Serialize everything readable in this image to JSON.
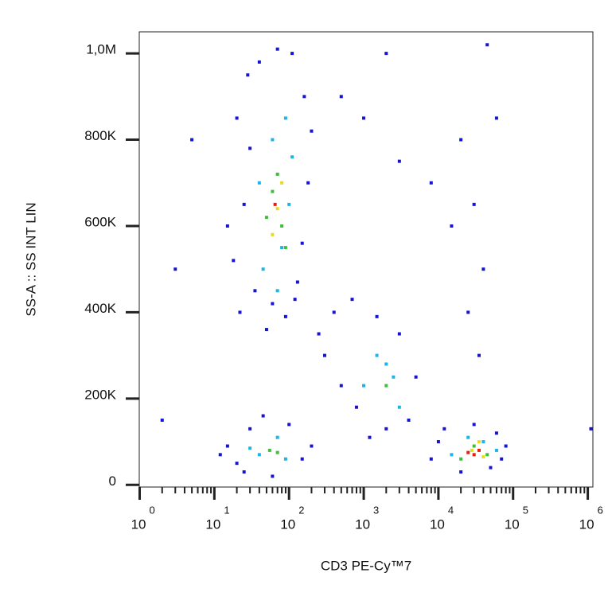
{
  "chart_data": {
    "type": "scatter",
    "x_label": "CD3 PE-Cy™7",
    "y_label": "SS-A :: SS INT LIN",
    "xscale": "log",
    "xlim": [
      1,
      1170000
    ],
    "ylim": [
      -5000,
      1050000
    ],
    "xticks": [
      {
        "value": 1,
        "label": "10",
        "exponent": "0"
      },
      {
        "value": 10,
        "label": "10",
        "exponent": "1"
      },
      {
        "value": 100,
        "label": "10",
        "exponent": "2"
      },
      {
        "value": 1000,
        "label": "10",
        "exponent": "3"
      },
      {
        "value": 10000,
        "label": "10",
        "exponent": "4"
      },
      {
        "value": 100000,
        "label": "10",
        "exponent": "5"
      },
      {
        "value": 1000000,
        "label": "10",
        "exponent": "6"
      }
    ],
    "yticks": [
      0,
      {
        "value": 200000,
        "label": "200K"
      },
      {
        "value": 400000,
        "label": "400K"
      },
      {
        "value": 600000,
        "label": "600K"
      },
      {
        "value": 800000,
        "label": "800K"
      },
      {
        "value": 1000000,
        "label": "1,0M"
      }
    ],
    "series": [
      {
        "color": "#1414d2",
        "x": [
          20,
          30,
          25,
          18,
          35,
          60,
          120,
          150,
          180,
          160,
          110,
          40,
          28,
          70,
          200,
          15,
          22,
          90,
          130,
          50,
          15,
          20,
          30,
          45,
          100,
          150,
          200,
          25,
          60,
          12,
          400,
          700,
          1500,
          3000,
          5000,
          4000,
          2000,
          800,
          300,
          500,
          1200,
          250,
          8000,
          12000,
          30000,
          60000,
          80000,
          50000,
          20000,
          10000,
          70000,
          500,
          2000,
          20000,
          30000,
          15000,
          40000,
          8000,
          3000,
          1000,
          60000,
          25000,
          35000,
          5,
          3,
          2,
          1100000,
          45000
        ],
        "y": [
          850000,
          780000,
          650000,
          520000,
          450000,
          420000,
          430000,
          560000,
          700000,
          900000,
          1000000,
          980000,
          950000,
          1010000,
          820000,
          600000,
          400000,
          390000,
          470000,
          360000,
          90000,
          50000,
          130000,
          160000,
          140000,
          60000,
          90000,
          30000,
          20000,
          70000,
          400000,
          430000,
          390000,
          350000,
          250000,
          150000,
          130000,
          180000,
          300000,
          230000,
          110000,
          350000,
          60000,
          130000,
          140000,
          120000,
          90000,
          40000,
          30000,
          100000,
          60000,
          900000,
          1000000,
          800000,
          650000,
          600000,
          500000,
          700000,
          750000,
          850000,
          850000,
          400000,
          300000,
          800000,
          500000,
          150000,
          130000,
          1020000
        ]
      },
      {
        "color": "#1eb4e6",
        "x": [
          40,
          60,
          80,
          100,
          45,
          90,
          70,
          110,
          40,
          70,
          90,
          30,
          1500,
          2500,
          1000,
          3000,
          2000,
          25000,
          40000,
          15000,
          60000
        ],
        "y": [
          700000,
          800000,
          550000,
          650000,
          500000,
          850000,
          450000,
          760000,
          70000,
          110000,
          60000,
          85000,
          300000,
          250000,
          230000,
          180000,
          280000,
          110000,
          100000,
          70000,
          80000
        ]
      },
      {
        "color": "#3cc03c",
        "x": [
          60,
          80,
          70,
          50,
          90,
          55,
          70,
          2000,
          30000,
          45000,
          20000
        ],
        "y": [
          680000,
          600000,
          720000,
          620000,
          550000,
          80000,
          75000,
          230000,
          90000,
          70000,
          60000
        ]
      },
      {
        "color": "#e6dc1e",
        "x": [
          70,
          60,
          80,
          28000,
          35000,
          40000
        ],
        "y": [
          640000,
          580000,
          700000,
          80000,
          100000,
          65000
        ]
      },
      {
        "color": "#e61e0a",
        "x": [
          65,
          30000,
          35000,
          25000
        ],
        "y": [
          650000,
          70000,
          80000,
          75000
        ]
      }
    ]
  }
}
